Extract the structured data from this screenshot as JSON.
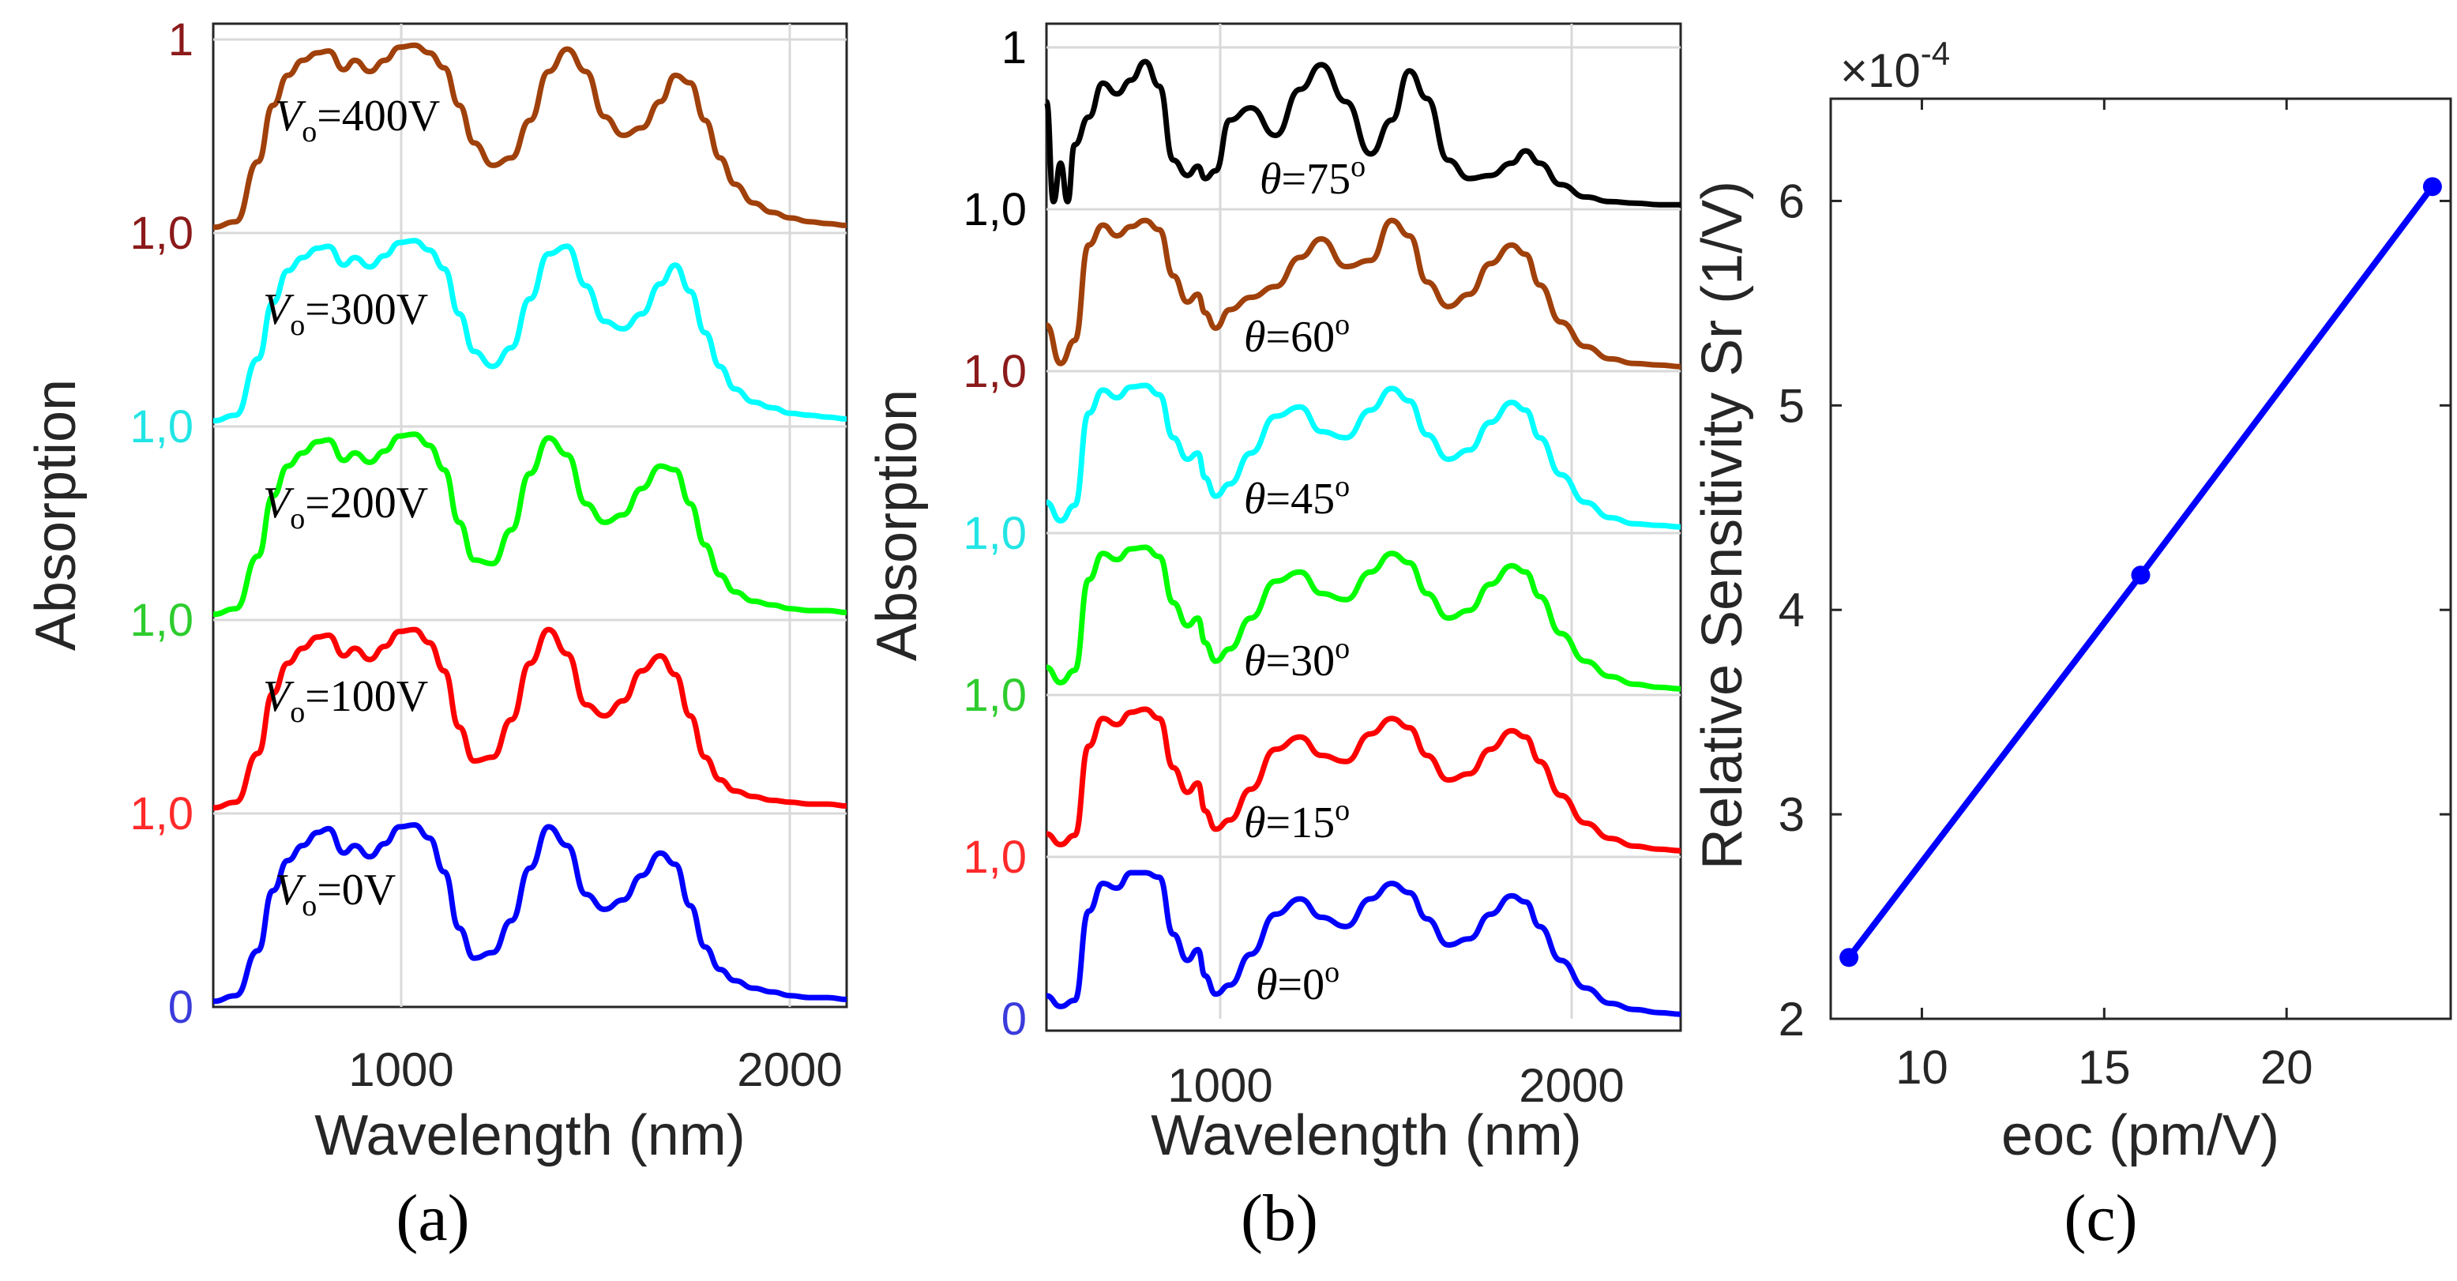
{
  "chart_data": [
    {
      "id": "a",
      "type": "line",
      "caption": "(a)",
      "xlabel": "Wavelength (nm)",
      "ylabel": "Absorption",
      "xlim": [
        500,
        2200
      ],
      "xticks": [
        "1000",
        "2000"
      ],
      "grid": true,
      "bottom_label": "0",
      "top_label": "1",
      "stack_labels": [
        "1,0",
        "1,0",
        "1,0",
        "1,0"
      ],
      "series": [
        {
          "name": "V_o=0V",
          "annotation": {
            "var": "V",
            "sub": "o",
            "rest": "=0V"
          },
          "color": "#0000ff",
          "x": [
            500,
            560,
            620,
            660,
            700,
            740,
            780,
            810,
            850,
            880,
            920,
            960,
            1000,
            1040,
            1080,
            1120,
            1160,
            1200,
            1250,
            1300,
            1350,
            1400,
            1450,
            1500,
            1550,
            1600,
            1650,
            1700,
            1740,
            1780,
            1820,
            1860,
            1900,
            1950,
            2000,
            2050,
            2100,
            2150,
            2200
          ],
          "values": [
            0.03,
            0.06,
            0.3,
            0.62,
            0.78,
            0.86,
            0.93,
            0.95,
            0.82,
            0.86,
            0.8,
            0.87,
            0.96,
            0.97,
            0.9,
            0.72,
            0.42,
            0.26,
            0.29,
            0.46,
            0.74,
            0.96,
            0.86,
            0.6,
            0.52,
            0.57,
            0.7,
            0.82,
            0.76,
            0.54,
            0.32,
            0.2,
            0.14,
            0.1,
            0.08,
            0.06,
            0.05,
            0.05,
            0.04
          ]
        },
        {
          "name": "V_o=100V",
          "annotation": {
            "var": "V",
            "sub": "o",
            "rest": "=100V"
          },
          "color": "#ff0000",
          "x": [
            500,
            560,
            620,
            660,
            700,
            740,
            780,
            810,
            850,
            880,
            920,
            960,
            1000,
            1040,
            1080,
            1120,
            1160,
            1200,
            1250,
            1300,
            1350,
            1400,
            1450,
            1500,
            1550,
            1600,
            1650,
            1700,
            1740,
            1780,
            1820,
            1860,
            1900,
            1950,
            2000,
            2050,
            2100,
            2150,
            2200
          ],
          "values": [
            0.03,
            0.06,
            0.32,
            0.64,
            0.8,
            0.88,
            0.94,
            0.95,
            0.84,
            0.88,
            0.82,
            0.89,
            0.97,
            0.98,
            0.91,
            0.76,
            0.46,
            0.28,
            0.3,
            0.5,
            0.8,
            0.98,
            0.85,
            0.58,
            0.52,
            0.6,
            0.76,
            0.84,
            0.74,
            0.52,
            0.3,
            0.18,
            0.12,
            0.09,
            0.07,
            0.06,
            0.05,
            0.05,
            0.04
          ]
        },
        {
          "name": "V_o=200V",
          "annotation": {
            "var": "V",
            "sub": "o",
            "rest": "=200V"
          },
          "color": "#00ff00",
          "x": [
            500,
            560,
            620,
            660,
            700,
            740,
            780,
            810,
            850,
            880,
            920,
            960,
            1000,
            1040,
            1080,
            1120,
            1160,
            1200,
            1250,
            1300,
            1350,
            1400,
            1450,
            1500,
            1550,
            1600,
            1650,
            1700,
            1740,
            1780,
            1820,
            1860,
            1900,
            1950,
            2000,
            2050,
            2100,
            2150,
            2200
          ],
          "values": [
            0.03,
            0.06,
            0.34,
            0.66,
            0.82,
            0.89,
            0.95,
            0.96,
            0.85,
            0.89,
            0.84,
            0.9,
            0.98,
            0.99,
            0.93,
            0.8,
            0.52,
            0.32,
            0.3,
            0.48,
            0.78,
            0.97,
            0.88,
            0.62,
            0.52,
            0.56,
            0.7,
            0.82,
            0.8,
            0.62,
            0.4,
            0.24,
            0.15,
            0.1,
            0.08,
            0.06,
            0.05,
            0.05,
            0.04
          ]
        },
        {
          "name": "V_o=300V",
          "annotation": {
            "var": "V",
            "sub": "o",
            "rest": "=300V"
          },
          "color": "#00ffff",
          "x": [
            500,
            560,
            620,
            660,
            700,
            740,
            780,
            810,
            850,
            880,
            920,
            960,
            1000,
            1040,
            1080,
            1120,
            1160,
            1200,
            1250,
            1300,
            1350,
            1400,
            1450,
            1500,
            1550,
            1600,
            1650,
            1700,
            1740,
            1780,
            1820,
            1860,
            1900,
            1950,
            2000,
            2050,
            2100,
            2150,
            2200
          ],
          "values": [
            0.03,
            0.06,
            0.36,
            0.66,
            0.83,
            0.9,
            0.95,
            0.96,
            0.86,
            0.9,
            0.85,
            0.91,
            0.98,
            0.99,
            0.94,
            0.84,
            0.6,
            0.4,
            0.32,
            0.42,
            0.68,
            0.92,
            0.96,
            0.75,
            0.56,
            0.52,
            0.6,
            0.76,
            0.86,
            0.72,
            0.5,
            0.32,
            0.2,
            0.13,
            0.1,
            0.07,
            0.06,
            0.05,
            0.04
          ]
        },
        {
          "name": "V_o=400V",
          "annotation": {
            "var": "V",
            "sub": "o",
            "rest": "=400V"
          },
          "color": "#a0400a",
          "x": [
            500,
            560,
            620,
            660,
            700,
            740,
            780,
            810,
            850,
            880,
            920,
            960,
            1000,
            1040,
            1080,
            1120,
            1160,
            1200,
            1250,
            1300,
            1350,
            1400,
            1450,
            1500,
            1550,
            1600,
            1650,
            1700,
            1740,
            1780,
            1820,
            1860,
            1900,
            1950,
            2000,
            2050,
            2100,
            2150,
            2200
          ],
          "values": [
            0.03,
            0.06,
            0.38,
            0.68,
            0.84,
            0.92,
            0.96,
            0.97,
            0.87,
            0.92,
            0.86,
            0.92,
            0.99,
            1.0,
            0.96,
            0.88,
            0.68,
            0.48,
            0.36,
            0.4,
            0.6,
            0.86,
            0.98,
            0.86,
            0.62,
            0.52,
            0.56,
            0.7,
            0.84,
            0.8,
            0.6,
            0.4,
            0.26,
            0.16,
            0.11,
            0.08,
            0.06,
            0.05,
            0.04
          ]
        }
      ]
    },
    {
      "id": "b",
      "type": "line",
      "caption": "(b)",
      "xlabel": "Wavelength (nm)",
      "ylabel": "Absorption",
      "xlim": [
        500,
        2300
      ],
      "xticks": [
        "1000",
        "2000"
      ],
      "grid": true,
      "bottom_label": "0",
      "top_label": "1",
      "stack_labels": [
        "1,0",
        "1,0",
        "1,0",
        "1,0",
        "1,0"
      ],
      "series": [
        {
          "name": "theta=0",
          "annotation": {
            "var": "θ",
            "rest": "=0",
            "sup": "o"
          },
          "color": "#0000ff",
          "x": [
            500,
            540,
            580,
            620,
            660,
            700,
            740,
            780,
            820,
            860,
            900,
            930,
            950,
            980,
            1020,
            1080,
            1150,
            1220,
            1280,
            1350,
            1420,
            1480,
            1530,
            1580,
            1640,
            1700,
            1760,
            1820,
            1860,
            1900,
            1960,
            2030,
            2100,
            2170,
            2240,
            2300
          ],
          "values": [
            0.15,
            0.08,
            0.12,
            0.7,
            0.88,
            0.85,
            0.95,
            0.95,
            0.92,
            0.55,
            0.38,
            0.45,
            0.28,
            0.16,
            0.22,
            0.42,
            0.68,
            0.78,
            0.66,
            0.6,
            0.78,
            0.88,
            0.82,
            0.65,
            0.48,
            0.52,
            0.68,
            0.8,
            0.76,
            0.6,
            0.38,
            0.2,
            0.1,
            0.06,
            0.04,
            0.03
          ]
        },
        {
          "name": "theta=15",
          "annotation": {
            "var": "θ",
            "rest": "=15",
            "sup": "o"
          },
          "color": "#ff0000",
          "x": [
            500,
            540,
            580,
            620,
            660,
            700,
            740,
            780,
            820,
            860,
            900,
            930,
            950,
            980,
            1020,
            1080,
            1150,
            1220,
            1280,
            1350,
            1420,
            1480,
            1530,
            1580,
            1640,
            1700,
            1760,
            1820,
            1860,
            1900,
            1960,
            2030,
            2100,
            2170,
            2240,
            2300
          ],
          "values": [
            0.15,
            0.08,
            0.14,
            0.72,
            0.9,
            0.86,
            0.94,
            0.96,
            0.9,
            0.58,
            0.42,
            0.48,
            0.3,
            0.18,
            0.24,
            0.44,
            0.7,
            0.78,
            0.66,
            0.62,
            0.8,
            0.9,
            0.84,
            0.66,
            0.5,
            0.54,
            0.7,
            0.82,
            0.78,
            0.62,
            0.4,
            0.22,
            0.12,
            0.07,
            0.05,
            0.04
          ]
        },
        {
          "name": "theta=30",
          "annotation": {
            "var": "θ",
            "rest": "=30",
            "sup": "o"
          },
          "color": "#00ff00",
          "x": [
            500,
            540,
            580,
            620,
            660,
            700,
            740,
            780,
            820,
            860,
            900,
            930,
            950,
            980,
            1020,
            1080,
            1150,
            1220,
            1280,
            1350,
            1420,
            1480,
            1530,
            1580,
            1640,
            1700,
            1760,
            1820,
            1860,
            1900,
            1960,
            2030,
            2100,
            2170,
            2240,
            2300
          ],
          "values": [
            0.18,
            0.08,
            0.16,
            0.75,
            0.92,
            0.88,
            0.95,
            0.96,
            0.9,
            0.6,
            0.45,
            0.5,
            0.34,
            0.22,
            0.3,
            0.5,
            0.74,
            0.8,
            0.66,
            0.62,
            0.8,
            0.92,
            0.86,
            0.66,
            0.5,
            0.55,
            0.72,
            0.84,
            0.8,
            0.64,
            0.4,
            0.22,
            0.12,
            0.07,
            0.05,
            0.04
          ]
        },
        {
          "name": "theta=45",
          "annotation": {
            "var": "θ",
            "rest": "=45",
            "sup": "o"
          },
          "color": "#00ffff",
          "x": [
            500,
            540,
            580,
            620,
            660,
            700,
            740,
            780,
            820,
            860,
            900,
            930,
            950,
            980,
            1020,
            1080,
            1150,
            1220,
            1280,
            1350,
            1420,
            1480,
            1530,
            1580,
            1640,
            1700,
            1760,
            1820,
            1860,
            1900,
            1960,
            2030,
            2100,
            2170,
            2240,
            2300
          ],
          "values": [
            0.2,
            0.08,
            0.18,
            0.78,
            0.93,
            0.88,
            0.95,
            0.96,
            0.9,
            0.62,
            0.48,
            0.52,
            0.36,
            0.24,
            0.32,
            0.52,
            0.76,
            0.82,
            0.66,
            0.62,
            0.8,
            0.94,
            0.86,
            0.64,
            0.48,
            0.54,
            0.72,
            0.85,
            0.8,
            0.62,
            0.38,
            0.2,
            0.1,
            0.06,
            0.05,
            0.04
          ]
        },
        {
          "name": "theta=60",
          "annotation": {
            "var": "θ",
            "rest": "=60",
            "sup": "o"
          },
          "color": "#a0400a",
          "x": [
            500,
            540,
            580,
            620,
            660,
            700,
            740,
            780,
            820,
            860,
            900,
            930,
            950,
            980,
            1020,
            1080,
            1150,
            1220,
            1280,
            1350,
            1420,
            1480,
            1530,
            1580,
            1640,
            1700,
            1760,
            1820,
            1860,
            1900,
            1960,
            2030,
            2100,
            2170,
            2240,
            2300
          ],
          "values": [
            0.3,
            0.05,
            0.2,
            0.82,
            0.95,
            0.88,
            0.94,
            0.98,
            0.92,
            0.62,
            0.45,
            0.5,
            0.38,
            0.28,
            0.4,
            0.48,
            0.55,
            0.74,
            0.86,
            0.68,
            0.72,
            0.98,
            0.88,
            0.58,
            0.42,
            0.5,
            0.7,
            0.82,
            0.76,
            0.56,
            0.32,
            0.16,
            0.08,
            0.05,
            0.04,
            0.03
          ]
        },
        {
          "name": "theta=75",
          "annotation": {
            "var": "θ",
            "rest": "=75",
            "sup": "o"
          },
          "color": "#000000",
          "x": [
            500,
            520,
            540,
            560,
            580,
            620,
            660,
            700,
            740,
            780,
            820,
            860,
            900,
            930,
            950,
            980,
            1020,
            1080,
            1150,
            1220,
            1280,
            1350,
            1420,
            1480,
            1530,
            1580,
            1640,
            1700,
            1760,
            1820,
            1860,
            1900,
            1960,
            2030,
            2100,
            2170,
            2240,
            2300
          ],
          "values": [
            0.7,
            0.05,
            0.3,
            0.05,
            0.42,
            0.6,
            0.82,
            0.75,
            0.84,
            0.96,
            0.8,
            0.32,
            0.22,
            0.28,
            0.2,
            0.25,
            0.58,
            0.66,
            0.48,
            0.78,
            0.94,
            0.7,
            0.36,
            0.58,
            0.9,
            0.72,
            0.32,
            0.2,
            0.22,
            0.3,
            0.38,
            0.3,
            0.16,
            0.08,
            0.05,
            0.04,
            0.03,
            0.03
          ]
        }
      ]
    },
    {
      "id": "c",
      "type": "line",
      "caption": "(c)",
      "xlabel": "eoc (pm/V)",
      "ylabel": "Relative Sensitivity Sr (1/V)",
      "xlim": [
        7.5,
        24.5
      ],
      "ylim": [
        2.0,
        6.5
      ],
      "xticks": [
        10,
        15,
        20
      ],
      "yticks": [
        2,
        3,
        4,
        5,
        6
      ],
      "multiplier_base": "×10",
      "multiplier_exp": "-4",
      "grid": false,
      "series": [
        {
          "name": "Sr",
          "color": "#0000ff",
          "x": [
            8,
            16,
            24
          ],
          "values": [
            2.3,
            4.17,
            6.07
          ]
        }
      ]
    }
  ]
}
